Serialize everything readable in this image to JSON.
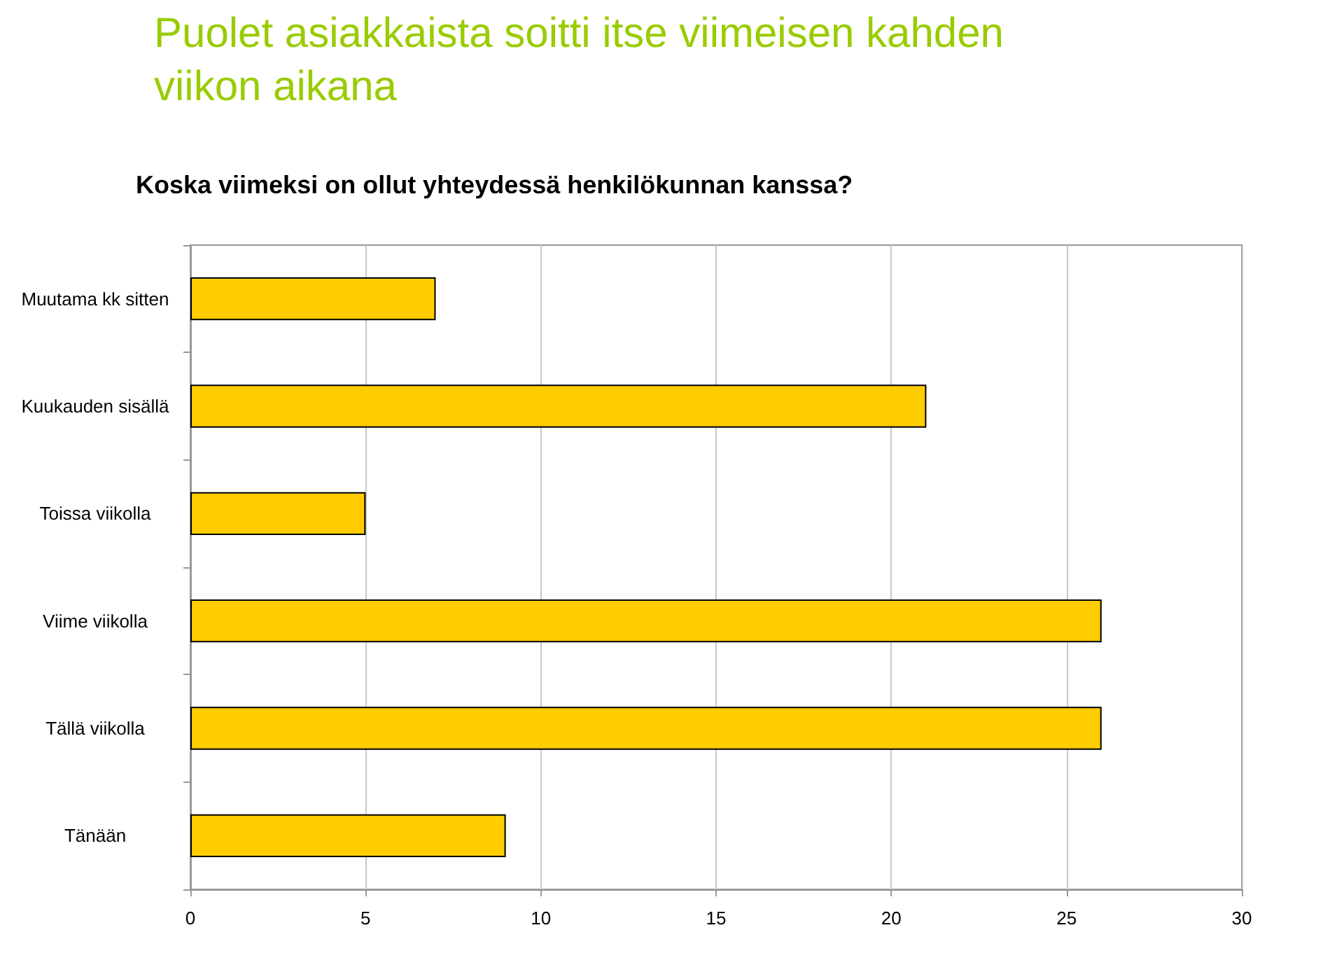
{
  "chart_data": {
    "type": "bar",
    "orientation": "horizontal",
    "title": "Puolet asiakkaista soitti itse viimeisen kahden viikon aikana",
    "subtitle": "Koska viimeksi on ollut yhteydessä henkilökunnan kanssa?",
    "categories": [
      "Muutama kk sitten",
      "Kuukauden sisällä",
      "Toissa viikolla",
      "Viime viikolla",
      "Tällä viikolla",
      "Tänään"
    ],
    "values": [
      7,
      21,
      5,
      26,
      26,
      9
    ],
    "color": "#ffcc00",
    "xlim": [
      0,
      30
    ],
    "xticks": [
      0,
      5,
      10,
      15,
      20,
      25,
      30
    ],
    "grid": "x"
  }
}
